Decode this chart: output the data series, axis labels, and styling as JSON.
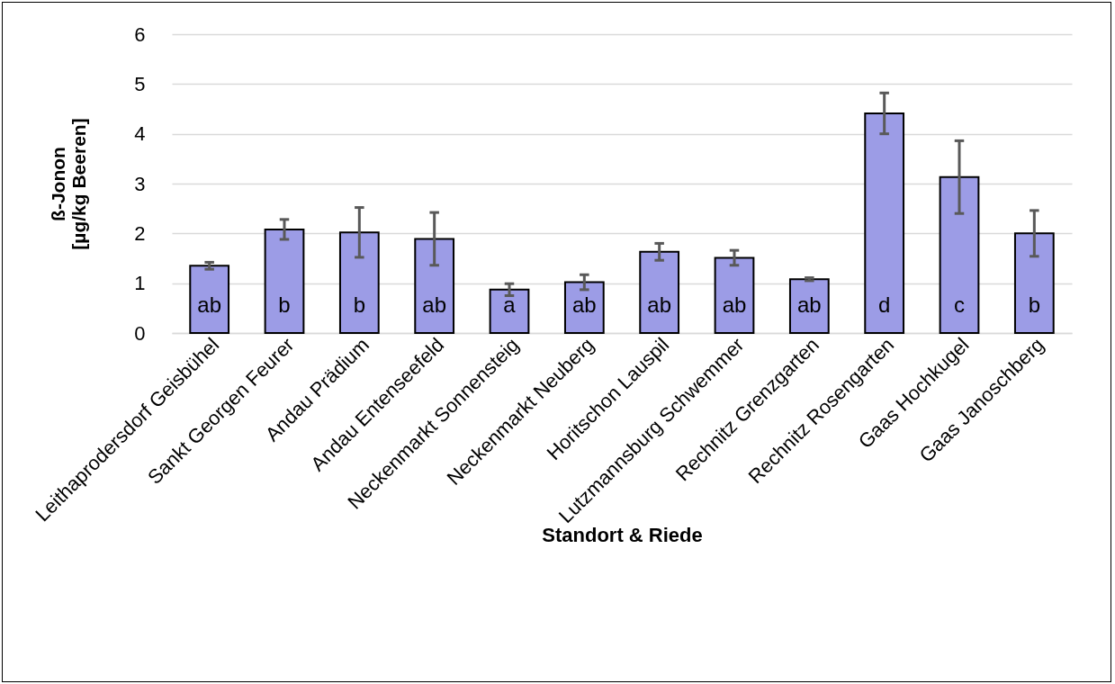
{
  "chart_data": {
    "type": "bar",
    "xlabel": "Standort & Riede",
    "ylabel": "ß-Jonon\n[µg/kg Beeren]",
    "categories": [
      "Leithaprodersdorf Geisbühel",
      "Sankt Georgen Feurer",
      "Andau Prädium",
      "Andau Entenseefeld",
      "Neckenmarkt Sonnensteig",
      "Neckenmarkt Neuberg",
      "Horitschon Lauspil",
      "Lutzmannsburg Schwemmer",
      "Rechnitz Grenzgarten",
      "Rechnitz Rosengarten",
      "Gaas Hochkugel",
      "Gaas Janoschberg"
    ],
    "values": [
      1.35,
      2.08,
      2.02,
      1.89,
      0.87,
      1.02,
      1.63,
      1.51,
      1.08,
      4.41,
      3.13,
      2.0
    ],
    "errors": [
      0.07,
      0.2,
      0.5,
      0.53,
      0.12,
      0.15,
      0.17,
      0.15,
      0.03,
      0.41,
      0.73,
      0.46
    ],
    "value_labels": [
      "ab",
      "b",
      "b",
      "ab",
      "a",
      "ab",
      "ab",
      "ab",
      "ab",
      "d",
      "c",
      "b"
    ],
    "color": "#9c9ce6",
    "ylim": [
      0,
      6
    ],
    "yticks": [
      0,
      1,
      2,
      3,
      4,
      5,
      6
    ],
    "grid": "y"
  }
}
